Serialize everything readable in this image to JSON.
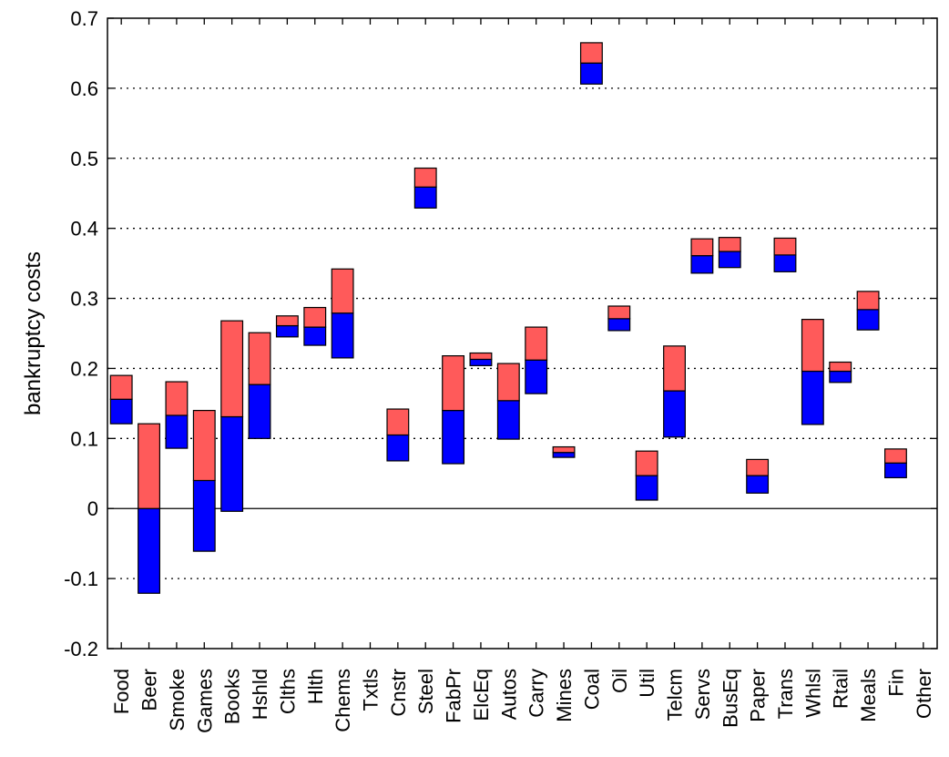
{
  "chart_data": {
    "type": "bar",
    "title": "",
    "xlabel": "",
    "ylabel": "bankruptcy costs",
    "ylim": [
      -0.2,
      0.7
    ],
    "yticks": [
      -0.2,
      -0.1,
      0,
      0.1,
      0.2,
      0.3,
      0.4,
      0.5,
      0.6,
      0.7
    ],
    "ytick_labels": [
      "-0.2",
      "-0.1",
      "0",
      "0.1",
      "0.2",
      "0.3",
      "0.4",
      "0.5",
      "0.6",
      "0.7"
    ],
    "grid": "horizontal dotted",
    "bar_style": "floating stacked range bars (lower segment and upper segment)",
    "categories": [
      "Food",
      "Beer",
      "Smoke",
      "Games",
      "Books",
      "Hshld",
      "Clths",
      "Hlth",
      "Chems",
      "Txtls",
      "Cnstr",
      "Steel",
      "FabPr",
      "ElcEq",
      "Autos",
      "Carry",
      "Mines",
      "Coal",
      "Oil",
      "Util",
      "Telcm",
      "Servs",
      "BusEq",
      "Paper",
      "Trans",
      "Whlsl",
      "Rtail",
      "Meals",
      "Fin",
      "Other"
    ],
    "series": [
      {
        "color": "#0000ff",
        "low": [
          0.121,
          -0.121,
          0.086,
          -0.061,
          -0.004,
          0.1,
          0.245,
          0.233,
          0.215,
          null,
          0.068,
          0.429,
          0.064,
          0.204,
          0.099,
          0.164,
          0.073,
          0.606,
          0.254,
          0.012,
          0.102,
          0.336,
          0.344,
          0.022,
          0.338,
          0.12,
          0.18,
          0.255,
          0.044,
          null
        ],
        "high": [
          0.156,
          0.0,
          0.133,
          0.04,
          0.131,
          0.177,
          0.261,
          0.259,
          0.279,
          null,
          0.105,
          0.459,
          0.14,
          0.213,
          0.154,
          0.212,
          0.08,
          0.636,
          0.271,
          0.047,
          0.168,
          0.361,
          0.367,
          0.047,
          0.362,
          0.196,
          0.196,
          0.284,
          0.065,
          null
        ]
      },
      {
        "color": "#ff5a5a",
        "low": [
          0.156,
          0.0,
          0.133,
          0.04,
          0.131,
          0.177,
          0.261,
          0.259,
          0.279,
          null,
          0.105,
          0.459,
          0.14,
          0.213,
          0.154,
          0.212,
          0.08,
          0.636,
          0.271,
          0.047,
          0.168,
          0.361,
          0.367,
          0.047,
          0.362,
          0.196,
          0.196,
          0.284,
          0.065,
          null
        ],
        "high": [
          0.19,
          0.121,
          0.181,
          0.14,
          0.268,
          0.251,
          0.275,
          0.287,
          0.342,
          null,
          0.142,
          0.486,
          0.218,
          0.222,
          0.207,
          0.259,
          0.088,
          0.665,
          0.289,
          0.082,
          0.232,
          0.385,
          0.387,
          0.07,
          0.386,
          0.27,
          0.209,
          0.31,
          0.085,
          null
        ]
      }
    ]
  }
}
